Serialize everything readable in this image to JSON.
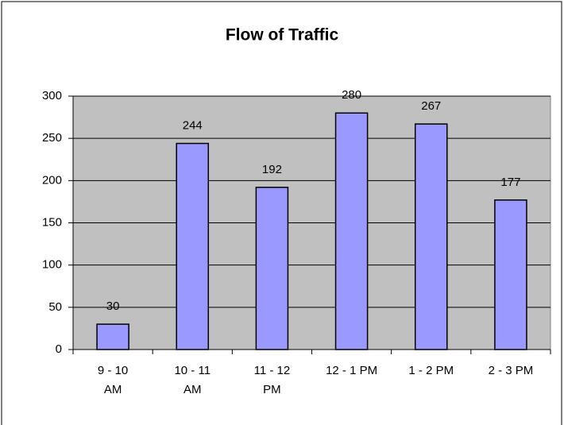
{
  "chart_data": {
    "type": "bar",
    "title": "Flow of Traffic",
    "categories": [
      "9 - 10\nAM",
      "10 - 11\nAM",
      "11 - 12\nPM",
      "12 - 1 PM",
      "1 - 2 PM",
      "2 - 3 PM"
    ],
    "values": [
      30,
      244,
      192,
      280,
      267,
      177
    ],
    "color": "#9999ff",
    "ylim": [
      0,
      300
    ],
    "yticks": [
      0,
      50,
      100,
      150,
      200,
      250,
      300
    ],
    "grid": true
  }
}
